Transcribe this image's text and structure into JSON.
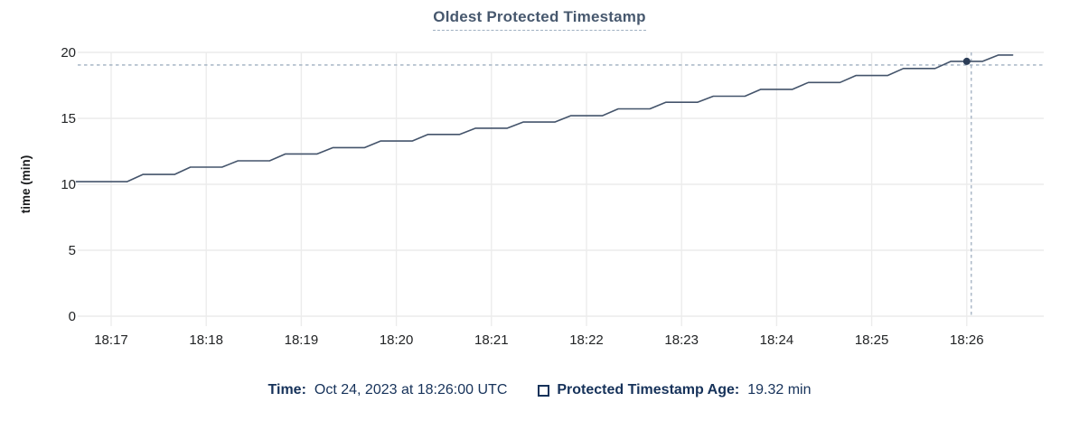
{
  "chart": {
    "title": "Oldest Protected Timestamp",
    "ylabel": "time (min)"
  },
  "tooltip": {
    "time_label": "Time:",
    "time_value": "Oct 24, 2023 at 18:26:00 UTC",
    "age_label": "Protected Timestamp Age:",
    "age_value": "19.32 min"
  },
  "colors": {
    "title": "#47586e",
    "underline": "#9fb0c1",
    "line": "#44546b",
    "marker": "#2c3d57",
    "crosshair": "#9fafc0",
    "grid": "#ececec",
    "axis_text": "#222426",
    "navy_text": "#16325a"
  },
  "chart_data": {
    "type": "line",
    "title": "Oldest Protected Timestamp",
    "xlabel": "",
    "ylabel": "time (min)",
    "ylim": [
      0,
      20
    ],
    "y_ticks": [
      0,
      5,
      10,
      15,
      20
    ],
    "x_ticks": [
      "18:17",
      "18:18",
      "18:19",
      "18:20",
      "18:21",
      "18:22",
      "18:23",
      "18:24",
      "18:25",
      "18:26"
    ],
    "grid": true,
    "legend_position": "bottom",
    "hover": {
      "time": "18:26:00",
      "value": 19.32
    },
    "series": [
      {
        "name": "Protected Timestamp Age",
        "unit": "min",
        "points": [
          [
            "18:16:38",
            10.2
          ],
          [
            "18:17:10",
            10.2
          ],
          [
            "18:17:20",
            10.75
          ],
          [
            "18:17:40",
            10.75
          ],
          [
            "18:17:50",
            11.3
          ],
          [
            "18:18:10",
            11.3
          ],
          [
            "18:18:20",
            11.78
          ],
          [
            "18:18:40",
            11.78
          ],
          [
            "18:18:50",
            12.3
          ],
          [
            "18:19:10",
            12.3
          ],
          [
            "18:19:20",
            12.78
          ],
          [
            "18:19:40",
            12.78
          ],
          [
            "18:19:50",
            13.28
          ],
          [
            "18:20:10",
            13.28
          ],
          [
            "18:20:20",
            13.78
          ],
          [
            "18:20:40",
            13.78
          ],
          [
            "18:20:50",
            14.25
          ],
          [
            "18:21:10",
            14.25
          ],
          [
            "18:21:20",
            14.72
          ],
          [
            "18:21:40",
            14.72
          ],
          [
            "18:21:50",
            15.2
          ],
          [
            "18:22:10",
            15.2
          ],
          [
            "18:22:20",
            15.72
          ],
          [
            "18:22:40",
            15.72
          ],
          [
            "18:22:50",
            16.22
          ],
          [
            "18:23:10",
            16.22
          ],
          [
            "18:23:20",
            16.68
          ],
          [
            "18:23:40",
            16.68
          ],
          [
            "18:23:50",
            17.2
          ],
          [
            "18:24:10",
            17.2
          ],
          [
            "18:24:20",
            17.72
          ],
          [
            "18:24:40",
            17.72
          ],
          [
            "18:24:50",
            18.25
          ],
          [
            "18:25:10",
            18.25
          ],
          [
            "18:25:20",
            18.78
          ],
          [
            "18:25:40",
            18.78
          ],
          [
            "18:25:50",
            19.32
          ],
          [
            "18:26:10",
            19.32
          ],
          [
            "18:26:20",
            19.8
          ],
          [
            "18:26:29",
            19.8
          ]
        ]
      }
    ]
  }
}
